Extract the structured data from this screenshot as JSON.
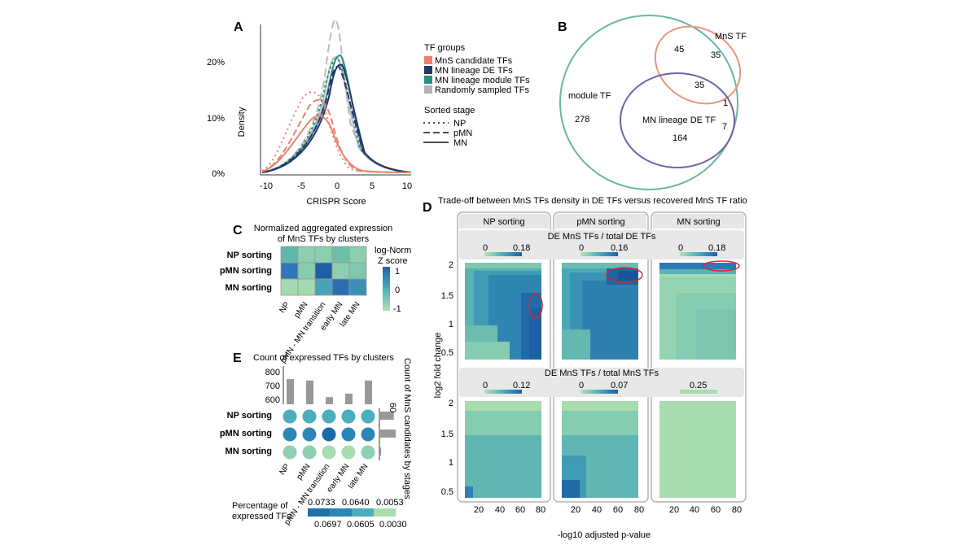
{
  "panels": {
    "A": {
      "label": "A",
      "xlabel": "CRISPR Score",
      "ylabel": "Density",
      "xticks": [
        "-10",
        "-5",
        "0",
        "5",
        "10"
      ],
      "yticks": [
        "0%",
        "10%",
        "20%"
      ],
      "legend_groups_title": "TF groups",
      "legend_groups": [
        {
          "label": "MnS candidate TFs",
          "color": "#e9836e"
        },
        {
          "label": "MN lineage DE TFs",
          "color": "#26366b"
        },
        {
          "label": "MN lineage module TFs",
          "color": "#2a8f7f"
        },
        {
          "label": "Randomly sampled TFs",
          "color": "#b3b3b3"
        }
      ],
      "legend_stage_title": "Sorted stage",
      "legend_stages": [
        "NP",
        "pMN",
        "MN"
      ]
    },
    "B": {
      "label": "B",
      "sets": [
        {
          "label": "MnS TF",
          "color": "#e8957a"
        },
        {
          "label": "module TF",
          "color": "#66b8a3"
        },
        {
          "label": "MN lineage DE TF",
          "color": "#6f62a8"
        }
      ],
      "counts": [
        "45",
        "35",
        "35",
        "1",
        "278",
        "7",
        "164"
      ]
    },
    "C": {
      "label": "C",
      "title_line1": "Normalized aggregated expression",
      "title_line2": "of MnS TFs by clusters",
      "rows": [
        "NP sorting",
        "pMN sorting",
        "MN sorting"
      ],
      "cols": [
        "NP",
        "pMN",
        "pMN - MN transition",
        "early MN",
        "late MN"
      ],
      "cells": [
        [
          "#5fb8ac",
          "#8ccfae",
          "#8ccfae",
          "#6cc0aa",
          "#8ccfae"
        ],
        [
          "#2e78b6",
          "#86ccad",
          "#1f5fa6",
          "#8ccfae",
          "#7fc8ad"
        ],
        [
          "#a6d9b0",
          "#a6d9b0",
          "#4aa3b4",
          "#2e6db0",
          "#3b90b6"
        ]
      ],
      "legend_title_line1": "log-Norm",
      "legend_title_line2": "Z score",
      "legend_ticks": [
        "1",
        "0",
        "-1"
      ]
    },
    "D": {
      "label": "D",
      "title": "Trade-off between MnS TFs density in DE TFs versus recovered MnS TF ratio",
      "facets": [
        "NP sorting",
        "pMN sorting",
        "MN sorting"
      ],
      "row1_strip": "DE MnS TFs / total DE TFs",
      "row2_strip": "DE MnS TFs / total MnS TFs",
      "row1_scales": [
        [
          "0",
          "0.18"
        ],
        [
          "0",
          "0.16"
        ],
        [
          "0",
          "0.18"
        ]
      ],
      "row2_scales": [
        [
          "0",
          "0.12"
        ],
        [
          "0",
          "0.07"
        ],
        [
          "0.25"
        ]
      ],
      "xlabel": "-log10 adjusted p-value",
      "ylabel": "log2 fold change",
      "xticks": [
        "20",
        "40",
        "60",
        "80"
      ],
      "yticks": [
        "2",
        "1.5",
        "1",
        "0.5"
      ]
    },
    "E": {
      "label": "E",
      "title": "Count of expressed TFs by clusters",
      "bar_yticks": [
        "800",
        "700",
        "600"
      ],
      "bar_values": [
        770,
        760,
        640,
        665,
        760
      ],
      "rows": [
        "NP sorting",
        "pMN sorting",
        "MN sorting"
      ],
      "cols": [
        "NP",
        "pMN",
        "pMN - MN transition",
        "early MN",
        "late MN"
      ],
      "dot_colors": [
        [
          "#4aaebc",
          "#4aaebc",
          "#4aaebc",
          "#4aaebc",
          "#4aaebc"
        ],
        [
          "#2b86b8",
          "#2b86b8",
          "#1b6aa8",
          "#2b86b8",
          "#2b86b8"
        ],
        [
          "#8fd0b0",
          "#8fd0b0",
          "#a8dcb1",
          "#a8dcb1",
          "#8fd0b0"
        ]
      ],
      "side_label": "Count of MnS candidates by stages",
      "side_tick": "60",
      "side_values": [
        44,
        50,
        3
      ],
      "legend_title_line1": "Percentage of",
      "legend_title_line2": "expressed TFs",
      "legend_top_ticks": [
        "0.0733",
        "0.0640",
        "0.0053"
      ],
      "legend_bottom_ticks": [
        "0.0697",
        "0.0605",
        "0.0030"
      ]
    }
  }
}
